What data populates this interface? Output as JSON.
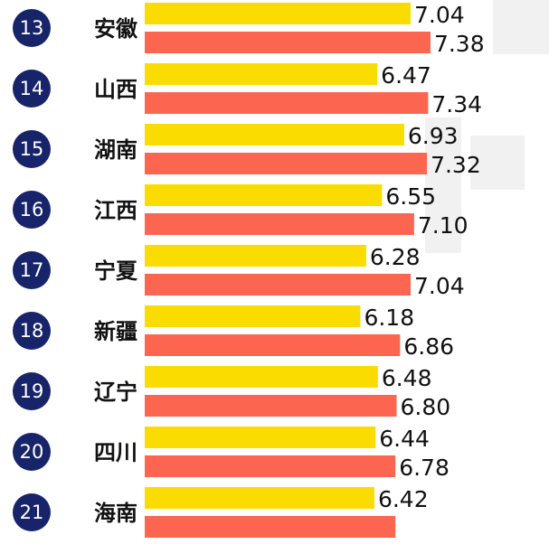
{
  "chart_data": {
    "type": "bar",
    "orientation": "horizontal",
    "title": "",
    "xlabel": "",
    "ylabel": "",
    "grid": false,
    "legend": "none",
    "colors": {
      "series_a": "#fbdc00",
      "series_b": "#fc6550",
      "rank_badge": "#17246a",
      "rank_text": "#ffffff",
      "label_text": "#111111"
    },
    "ranks": [
      "13",
      "14",
      "15",
      "16",
      "17",
      "18",
      "19",
      "20",
      "21"
    ],
    "categories": [
      "安徽",
      "山西",
      "湖南",
      "江西",
      "宁夏",
      "新疆",
      "辽宁",
      "四川",
      "海南"
    ],
    "series": [
      {
        "values": [
          7.04,
          6.47,
          6.93,
          6.55,
          6.28,
          6.18,
          6.48,
          6.44,
          6.42
        ]
      },
      {
        "values": [
          7.38,
          7.34,
          7.32,
          7.1,
          7.04,
          6.86,
          6.8,
          6.78,
          6.78
        ]
      }
    ],
    "value_labels": [
      [
        "7.04",
        "6.47",
        "6.93",
        "6.55",
        "6.28",
        "6.18",
        "6.48",
        "6.44",
        "6.42"
      ],
      [
        "7.38",
        "7.34",
        "7.32",
        "7.10",
        "7.04",
        "6.86",
        "6.80",
        "6.78",
        ""
      ]
    ]
  }
}
